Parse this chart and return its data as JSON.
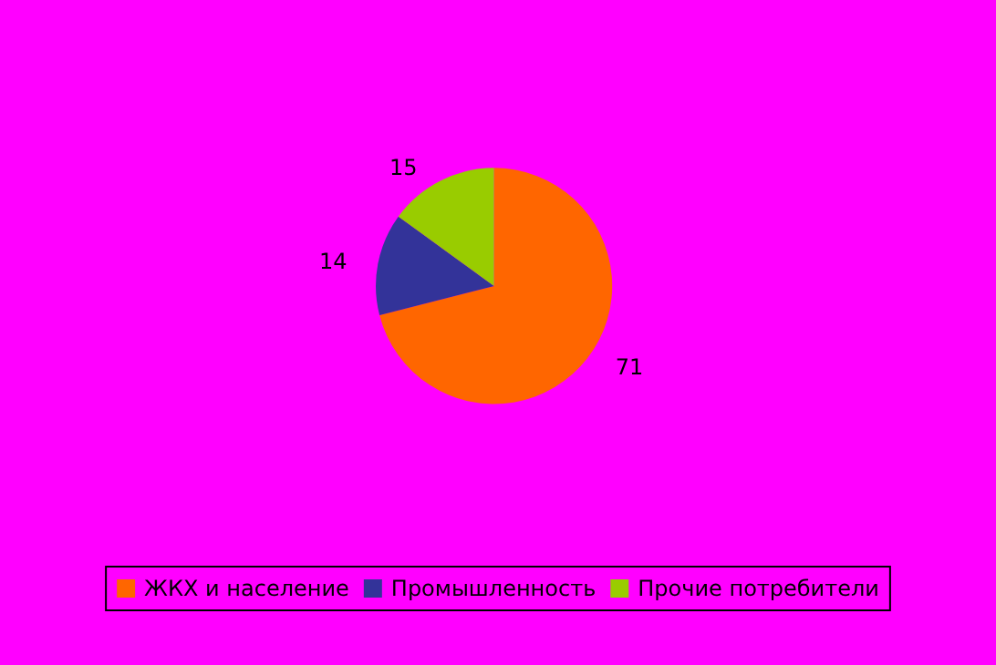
{
  "chart_data": {
    "type": "pie",
    "categories": [
      "ЖКХ и население",
      "Промышленность",
      "Прочие потребители"
    ],
    "values": [
      71,
      14,
      15
    ],
    "colors": [
      "#ff6600",
      "#333399",
      "#99cc00"
    ],
    "data_labels": true,
    "legend": "bottom"
  }
}
